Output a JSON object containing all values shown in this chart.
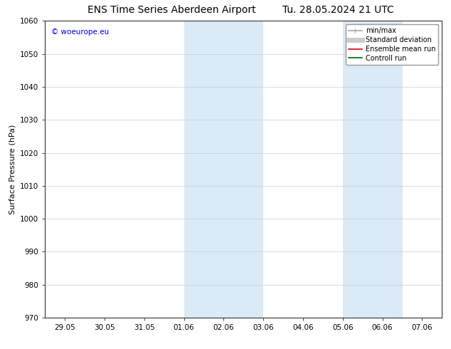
{
  "title": "ENS Time Series Aberdeen Airport",
  "title_right": "Tu. 28.05.2024 21 UTC",
  "ylabel": "Surface Pressure (hPa)",
  "ylim": [
    970,
    1060
  ],
  "yticks": [
    970,
    980,
    990,
    1000,
    1010,
    1020,
    1030,
    1040,
    1050,
    1060
  ],
  "xtick_labels": [
    "29.05",
    "30.05",
    "31.05",
    "01.06",
    "02.06",
    "03.06",
    "04.06",
    "05.06",
    "06.06",
    "07.06"
  ],
  "xtick_positions": [
    0,
    1,
    2,
    3,
    4,
    5,
    6,
    7,
    8,
    9
  ],
  "xlim": [
    -0.5,
    9.5
  ],
  "shaded_regions": [
    {
      "x_start": 3.0,
      "x_end": 5.0,
      "color": "#daeaf7"
    },
    {
      "x_start": 7.0,
      "x_end": 8.5,
      "color": "#daeaf7"
    }
  ],
  "watermark_text": "© woeurope.eu",
  "watermark_color": "#0000dd",
  "legend_entries": [
    {
      "label": "min/max",
      "color": "#aaaaaa",
      "lw": 1.2
    },
    {
      "label": "Standard deviation",
      "color": "#cccccc",
      "lw": 5
    },
    {
      "label": "Ensemble mean run",
      "color": "#dd0000",
      "lw": 1.2
    },
    {
      "label": "Controll run",
      "color": "#006600",
      "lw": 1.2
    }
  ],
  "bg_color": "#ffffff",
  "grid_color": "#cccccc",
  "tick_fontsize": 7.5,
  "label_fontsize": 8,
  "title_fontsize": 10,
  "legend_fontsize": 7
}
